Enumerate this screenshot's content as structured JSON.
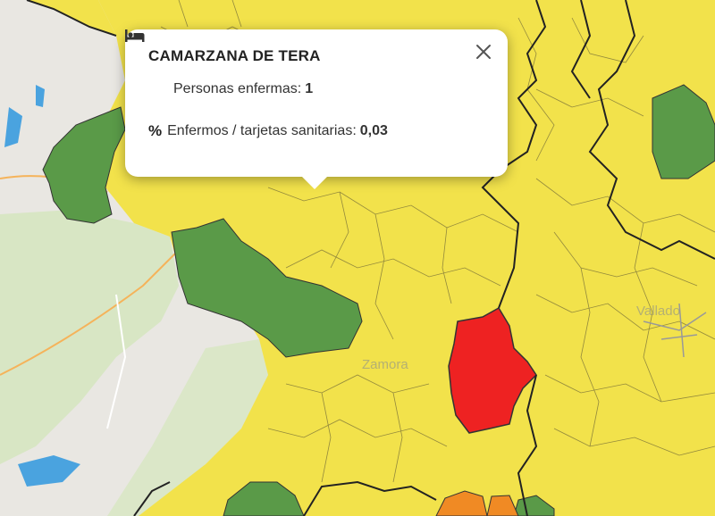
{
  "popup": {
    "title": "CAMARZANA DE TERA",
    "rows": [
      {
        "icon": "bed-icon",
        "label": "Personas enfermas:",
        "value": "1"
      },
      {
        "icon": "percent-icon",
        "label": "Enfermos / tarjetas sanitarias:",
        "value": "0,03"
      }
    ],
    "close_icon": "close-icon"
  },
  "map_labels": {
    "zamora": "Zamora",
    "valladolid": "Vallado"
  },
  "colors": {
    "yellow": "#f2e24b",
    "green": "#5a9a48",
    "red": "#ee2222",
    "orange": "#f08a24",
    "basemap": "#e9e7e2",
    "water": "#4aa3df",
    "border": "#444444"
  }
}
